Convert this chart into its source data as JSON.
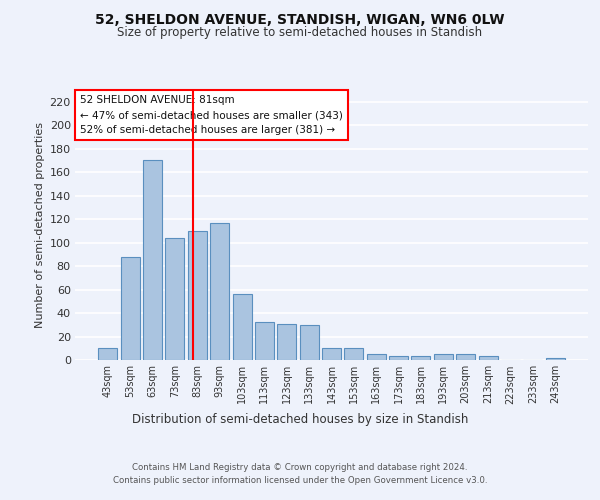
{
  "title1": "52, SHELDON AVENUE, STANDISH, WIGAN, WN6 0LW",
  "title2": "Size of property relative to semi-detached houses in Standish",
  "xlabel": "Distribution of semi-detached houses by size in Standish",
  "ylabel": "Number of semi-detached properties",
  "categories": [
    "43sqm",
    "53sqm",
    "63sqm",
    "73sqm",
    "83sqm",
    "93sqm",
    "103sqm",
    "113sqm",
    "123sqm",
    "133sqm",
    "143sqm",
    "153sqm",
    "163sqm",
    "173sqm",
    "183sqm",
    "193sqm",
    "203sqm",
    "213sqm",
    "223sqm",
    "233sqm",
    "243sqm"
  ],
  "values": [
    10,
    88,
    170,
    104,
    110,
    117,
    56,
    32,
    31,
    30,
    10,
    10,
    5,
    3,
    3,
    5,
    5,
    3,
    0,
    0,
    2
  ],
  "bar_color": "#aac4e0",
  "bar_edge_color": "#5a8fbf",
  "annotation_title": "52 SHELDON AVENUE: 81sqm",
  "annotation_line1": "← 47% of semi-detached houses are smaller (343)",
  "annotation_line2": "52% of semi-detached houses are larger (381) →",
  "footer1": "Contains HM Land Registry data © Crown copyright and database right 2024.",
  "footer2": "Contains public sector information licensed under the Open Government Licence v3.0.",
  "ylim": [
    0,
    230
  ],
  "yticks": [
    0,
    20,
    40,
    60,
    80,
    100,
    120,
    140,
    160,
    180,
    200,
    220
  ],
  "background_color": "#eef2fb",
  "grid_color": "#ffffff",
  "bar_width": 0.85,
  "redline_index": 3.8
}
